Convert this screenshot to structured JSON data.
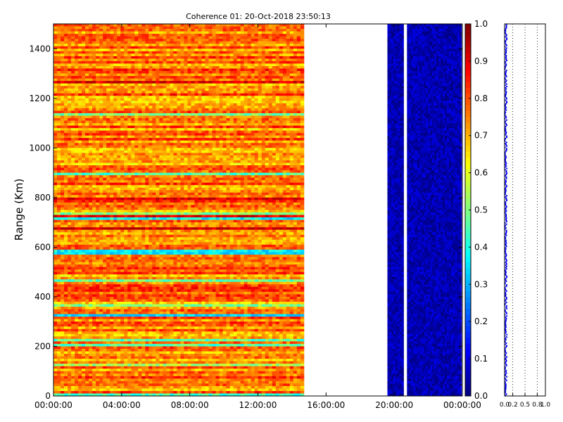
{
  "chart_data": [
    {
      "type": "heatmap",
      "title": "Coherence 01: 20-Oct-2018 23:50:13",
      "xlabel": "",
      "ylabel": "Range (Km)",
      "x_ticks": [
        "00:00:00",
        "04:00:00",
        "08:00:00",
        "12:00:00",
        "16:00:00",
        "20:00:00",
        "00:00:00"
      ],
      "x_range_hours": [
        0,
        24
      ],
      "y_ticks": [
        0,
        200,
        400,
        600,
        800,
        1000,
        1200,
        1400
      ],
      "y_range_km": [
        0,
        1500
      ],
      "colorbar": {
        "colormap": "jet",
        "range": [
          0.0,
          1.0
        ],
        "ticks": [
          "0.0",
          "0.1",
          "0.2",
          "0.3",
          "0.4",
          "0.5",
          "0.6",
          "0.7",
          "0.8",
          "0.9",
          "1.0"
        ]
      },
      "data_segments": [
        {
          "start_hour": 0.0,
          "end_hour": 14.7,
          "typical_coherence": 0.75,
          "range_of_values": [
            0.3,
            0.95
          ]
        },
        {
          "start_hour": 19.6,
          "end_hour": 20.55,
          "typical_coherence": 0.05,
          "range_of_values": [
            0.0,
            0.15
          ]
        },
        {
          "start_hour": 20.75,
          "end_hour": 23.95,
          "typical_coherence": 0.05,
          "range_of_values": [
            0.0,
            0.15
          ]
        }
      ],
      "grid": false
    },
    {
      "type": "scatter",
      "title": "",
      "xlabel": "",
      "ylabel": "",
      "x_ticks": [
        "0.0",
        "0.2",
        "0.5",
        "0.8",
        "1.0"
      ],
      "xlim": [
        0,
        1.0
      ],
      "ylim_km": [
        0,
        1500
      ],
      "typical_value": 0.03,
      "value_spread": [
        0.0,
        0.07
      ],
      "marker_color": "#0000ff",
      "grid": "vertical dotted"
    }
  ]
}
